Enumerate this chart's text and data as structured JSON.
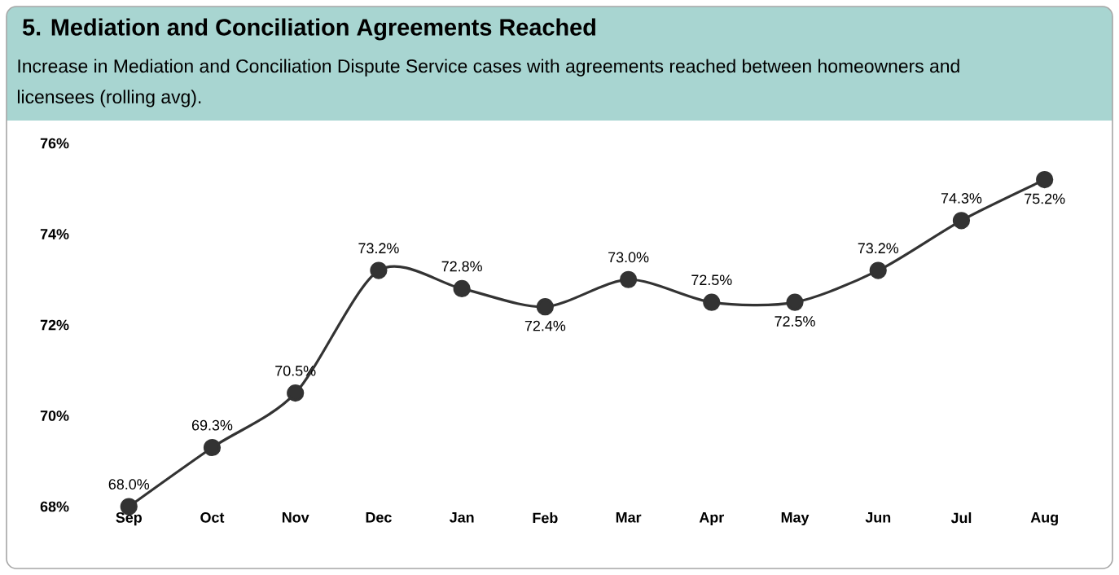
{
  "chart_data": {
    "type": "line",
    "title": "5. Mediation and Conciliation Agreements Reached",
    "subtitle": "Increase in Mediation and Conciliation Dispute Service cases with agreements reached between homeowners and licensees (rolling avg).",
    "categories": [
      "Sep",
      "Oct",
      "Nov",
      "Dec",
      "Jan",
      "Feb",
      "Mar",
      "Apr",
      "May",
      "Jun",
      "Jul",
      "Aug"
    ],
    "series": [
      {
        "color": "#333333",
        "values": [
          68.0,
          69.3,
          70.5,
          73.2,
          72.8,
          72.4,
          73.0,
          72.5,
          72.5,
          73.2,
          74.3,
          75.2
        ],
        "value_labels": [
          "68.0%",
          "69.3%",
          "70.5%",
          "73.2%",
          "72.8%",
          "72.4%",
          "73.0%",
          "72.5%",
          "72.5%",
          "73.2%",
          "74.3%",
          "75.2%"
        ]
      }
    ],
    "ylim": [
      68,
      76
    ],
    "yticks": [
      {
        "value": 68,
        "label": "68%"
      },
      {
        "value": 70,
        "label": "70%"
      },
      {
        "value": 72,
        "label": "72%"
      },
      {
        "value": 74,
        "label": "74%"
      },
      {
        "value": 76,
        "label": "76%"
      }
    ],
    "marker": "circle",
    "line_style": "solid",
    "grid": false
  }
}
